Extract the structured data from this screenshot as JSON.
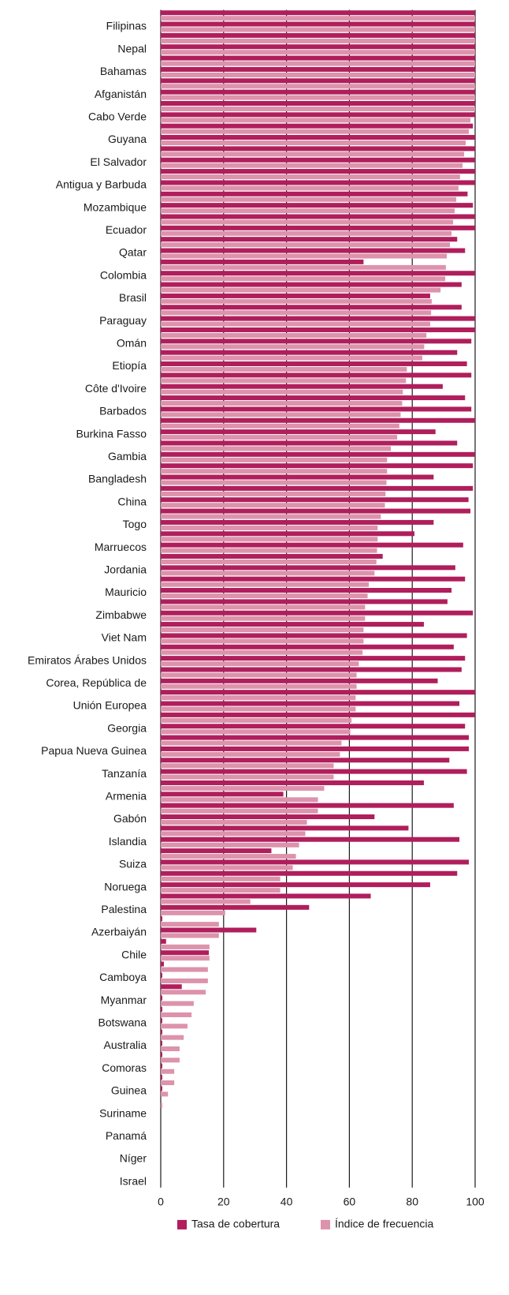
{
  "chart_data": {
    "type": "bar",
    "orientation": "horizontal",
    "categories": [
      null,
      "Filipinas",
      null,
      "Nepal",
      null,
      "Bahamas",
      null,
      "Afganistán",
      null,
      "Cabo Verde",
      null,
      "Guyana",
      null,
      "El Salvador",
      null,
      "Antigua y Barbuda",
      null,
      "Mozambique",
      null,
      "Ecuador",
      null,
      "Qatar",
      null,
      "Colombia",
      null,
      "Brasil",
      null,
      "Paraguay",
      null,
      "Omán",
      null,
      "Etiopía",
      null,
      "Côte d'Ivoire",
      null,
      "Barbados",
      null,
      "Burkina Fasso",
      null,
      "Gambia",
      null,
      "Bangladesh",
      null,
      "China",
      null,
      "Togo",
      null,
      "Marruecos",
      null,
      "Jordania",
      null,
      "Mauricio",
      null,
      "Zimbabwe",
      null,
      "Viet Nam",
      null,
      "Emiratos Árabes Unidos",
      null,
      "Corea, República de",
      null,
      "Unión Europea",
      null,
      "Georgia",
      null,
      "Papua Nueva Guinea",
      null,
      "Tanzanía",
      null,
      "Armenia",
      null,
      "Gabón",
      null,
      "Islandia",
      null,
      "Suiza",
      null,
      "Noruega",
      null,
      "Palestina",
      null,
      "Azerbaiyán",
      null,
      "Chile",
      null,
      "Camboya",
      null,
      "Myanmar",
      null,
      "Botswana",
      null,
      "Australia",
      null,
      "Comoras",
      null,
      "Guinea",
      null,
      "Suriname",
      null,
      "Panamá",
      null,
      "Níger",
      null,
      "Israel"
    ],
    "series": [
      {
        "name": "Tasa de cobertura",
        "color": "#b01e5c",
        "values": [
          100,
          100,
          100,
          100,
          100,
          100,
          100,
          100,
          100,
          100,
          99.3,
          100,
          100,
          100,
          100,
          100,
          97.6,
          99.3,
          100,
          100,
          94.3,
          96.8,
          64.5,
          100,
          95.7,
          85.7,
          95.7,
          100,
          100,
          98.8,
          94.3,
          97.4,
          98.8,
          89.7,
          96.8,
          98.8,
          100,
          87.4,
          94.3,
          100,
          99.3,
          86.8,
          99.3,
          97.9,
          98.5,
          86.8,
          80.7,
          96.2,
          70.6,
          93.7,
          96.8,
          92.5,
          91.2,
          99.3,
          83.7,
          97.4,
          93.2,
          96.8,
          95.7,
          88.1,
          100,
          95,
          100,
          96.8,
          98,
          98,
          91.8,
          97.4,
          83.7,
          39,
          93.2,
          68,
          78.8,
          95,
          35.2,
          98,
          94.3,
          85.7,
          66.8,
          47.2,
          0.5,
          30.4,
          1.7,
          15.3,
          1,
          0.5,
          6.7,
          0.5,
          0.5,
          0.5,
          0.5,
          0.5,
          0.5,
          0.5,
          0.5,
          0.5,
          0,
          0,
          0,
          0,
          0,
          0,
          0,
          0
        ]
      },
      {
        "name": "Índice de frecuencia",
        "color": "#dc93ab",
        "values": [
          100,
          100,
          100,
          100,
          100,
          100,
          100,
          100,
          100,
          98.5,
          98,
          97,
          96.5,
          96,
          95.2,
          94.7,
          94,
          93.5,
          93,
          92.5,
          92,
          91,
          90.7,
          90.5,
          89,
          86.2,
          86,
          85.7,
          84.5,
          83.8,
          83.2,
          78.3,
          78,
          77,
          76.8,
          76.3,
          75.9,
          75.2,
          73.2,
          72,
          72,
          71.8,
          71.5,
          71.3,
          70,
          69,
          69,
          68.8,
          68.6,
          68,
          66.2,
          65.8,
          65,
          65,
          64.5,
          64.5,
          64.2,
          63,
          62.3,
          62.3,
          62,
          62,
          60.7,
          60.3,
          57.5,
          57,
          55,
          55,
          52,
          50,
          50,
          46.5,
          46,
          44,
          43,
          42,
          38,
          38,
          28.5,
          20.5,
          18.5,
          18.5,
          15.5,
          15.5,
          15,
          15,
          14.3,
          10.5,
          9.8,
          8.5,
          7.3,
          6,
          6,
          4.3,
          4.3,
          2.3,
          0.5,
          0,
          0,
          0,
          0,
          0,
          0,
          0
        ]
      }
    ],
    "xlim": [
      0,
      100
    ],
    "xticks": [
      0,
      20,
      40,
      60,
      80,
      100
    ],
    "grid": true,
    "legend": "bottom"
  }
}
